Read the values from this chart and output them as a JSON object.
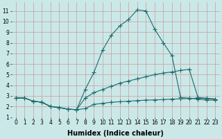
{
  "background_color": "#cbe8e8",
  "grid_color": "#c8a8a8",
  "line_color": "#1a6b6b",
  "xlabel": "Humidex (Indice chaleur)",
  "xlabel_fontsize": 7,
  "tick_fontsize": 5.5,
  "xlim": [
    -0.5,
    23.5
  ],
  "ylim": [
    1,
    11.8
  ],
  "xticks": [
    0,
    1,
    2,
    3,
    4,
    5,
    6,
    7,
    8,
    9,
    10,
    11,
    12,
    13,
    14,
    15,
    16,
    17,
    18,
    19,
    20,
    21,
    22,
    23
  ],
  "yticks": [
    1,
    2,
    3,
    4,
    5,
    6,
    7,
    8,
    9,
    10,
    11
  ],
  "line1_x": [
    0,
    1,
    2,
    3,
    4,
    5,
    6,
    7,
    8,
    9,
    10,
    11,
    12,
    13,
    14,
    15,
    16,
    17,
    18,
    19,
    20,
    21,
    22,
    23
  ],
  "line1_y": [
    2.8,
    2.8,
    2.5,
    2.4,
    2.0,
    1.9,
    1.75,
    1.7,
    1.8,
    2.2,
    2.3,
    2.4,
    2.45,
    2.5,
    2.55,
    2.6,
    2.62,
    2.65,
    2.7,
    2.72,
    2.75,
    2.78,
    2.75,
    2.7
  ],
  "line2_x": [
    0,
    1,
    2,
    3,
    4,
    5,
    6,
    7,
    8,
    9,
    10,
    11,
    12,
    13,
    14,
    15,
    16,
    17,
    18,
    19,
    20,
    21,
    22,
    23
  ],
  "line2_y": [
    2.8,
    2.8,
    2.5,
    2.4,
    2.0,
    1.9,
    1.75,
    1.7,
    2.8,
    3.3,
    3.6,
    3.9,
    4.2,
    4.4,
    4.6,
    4.8,
    5.0,
    5.15,
    5.25,
    5.4,
    5.5,
    2.85,
    2.78,
    2.7
  ],
  "line3_x": [
    0,
    1,
    2,
    3,
    4,
    5,
    6,
    7,
    8,
    9,
    10,
    11,
    12,
    13,
    14,
    15,
    16,
    17,
    18,
    19,
    20,
    21,
    22,
    23
  ],
  "line3_y": [
    2.8,
    2.8,
    2.5,
    2.4,
    2.0,
    1.9,
    1.75,
    1.7,
    3.6,
    5.2,
    7.3,
    8.7,
    9.6,
    10.2,
    11.1,
    11.0,
    9.3,
    8.0,
    6.8,
    2.85,
    2.78,
    2.7,
    2.6,
    2.6
  ]
}
